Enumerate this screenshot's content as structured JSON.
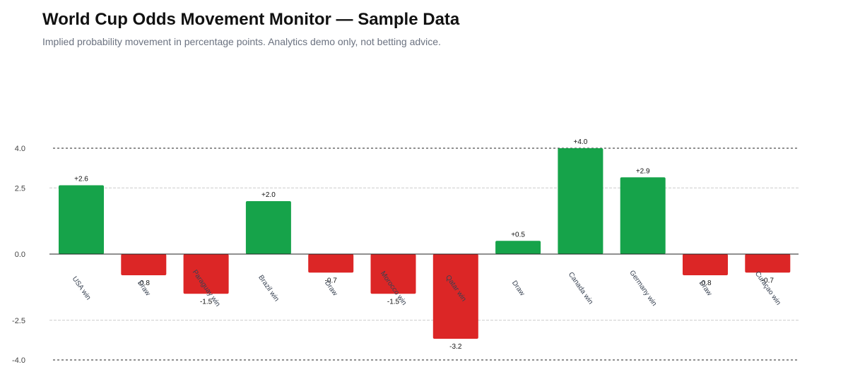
{
  "title": "World Cup Odds Movement Monitor — Sample Data",
  "subtitle": "Implied probability movement in percentage points. Analytics demo only, not betting advice.",
  "colors": {
    "positive": "#16a34a",
    "negative": "#dc2626"
  },
  "chart_data": {
    "type": "bar",
    "categories": [
      "USA win",
      "Draw",
      "Paraguay win",
      "Brazil win",
      "Draw",
      "Morocco win",
      "Qatar win",
      "Draw",
      "Canada win",
      "Germany win",
      "Draw",
      "Curaçao win"
    ],
    "values": [
      2.6,
      -0.8,
      -1.5,
      2.0,
      -0.7,
      -1.5,
      -3.2,
      0.5,
      4.0,
      2.9,
      -0.8,
      -0.7
    ],
    "value_labels": [
      "+2.6",
      "-0.8",
      "-1.5",
      "+2.0",
      "-0.7",
      "-1.5",
      "-3.2",
      "+0.5",
      "+4.0",
      "+2.9",
      "-0.8",
      "-0.7"
    ],
    "ylim": [
      -4.0,
      4.0
    ],
    "yticks": [
      4.0,
      2.5,
      0.0,
      -2.5,
      -4.0
    ],
    "ytick_labels": [
      "4.0",
      "2.5",
      "0.0",
      "-2.5",
      "-4.0"
    ],
    "limit_lines": [
      4.0,
      -4.0
    ],
    "grid": true
  }
}
